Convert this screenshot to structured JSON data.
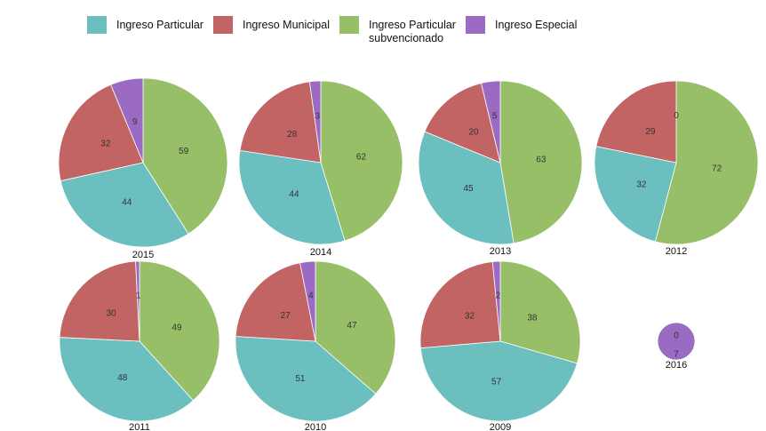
{
  "chart_data": {
    "type": "pie",
    "legend_placement": "top",
    "categories": [
      "Ingreso Particular",
      "Ingreso Municipal",
      "Ingreso Particular subvencionado",
      "Ingreso Especial"
    ],
    "colors": [
      "#6bbfbf",
      "#c26464",
      "#97bf68",
      "#9b6bc3"
    ],
    "legend": [
      {
        "label_lines": [
          "Ingreso Particular"
        ],
        "color": "#6bbfbf"
      },
      {
        "label_lines": [
          "Ingreso Municipal"
        ],
        "color": "#c26464"
      },
      {
        "label_lines": [
          "Ingreso Particular",
          "subvencionado"
        ],
        "color": "#97bf68"
      },
      {
        "label_lines": [
          "Ingreso Especial"
        ],
        "color": "#9b6bc3"
      }
    ],
    "charts": [
      {
        "year": "2015",
        "values": [
          44,
          32,
          59,
          9
        ]
      },
      {
        "year": "2014",
        "values": [
          44,
          28,
          62,
          3
        ]
      },
      {
        "year": "2013",
        "values": [
          45,
          20,
          63,
          5
        ]
      },
      {
        "year": "2012",
        "values": [
          32,
          29,
          72,
          0
        ]
      },
      {
        "year": "2011",
        "values": [
          48,
          30,
          49,
          1
        ]
      },
      {
        "year": "2010",
        "values": [
          51,
          27,
          47,
          4
        ]
      },
      {
        "year": "2009",
        "values": [
          57,
          32,
          38,
          2
        ]
      },
      {
        "year": "2016",
        "values": [
          0,
          0,
          0,
          7
        ]
      }
    ]
  }
}
